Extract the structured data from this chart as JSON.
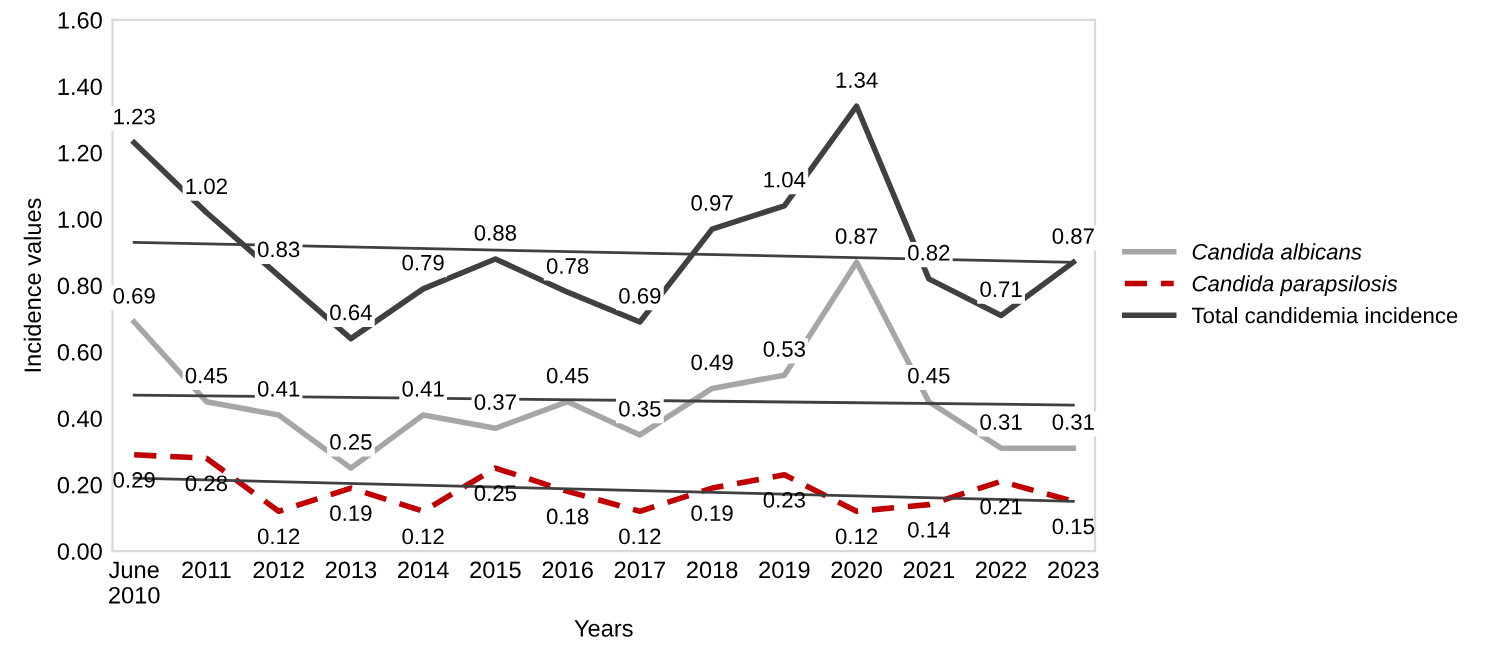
{
  "chart_data": {
    "type": "line",
    "xlabel": "Years",
    "ylabel": "Incidence values",
    "categories": [
      "June\n2010",
      "2011",
      "2012",
      "2013",
      "2014",
      "2015",
      "2016",
      "2017",
      "2018",
      "2019",
      "2020",
      "2021",
      "2022",
      "2023"
    ],
    "ylim": [
      0,
      1.6
    ],
    "yticks": [
      {
        "value": 0,
        "label": "0.00"
      },
      {
        "value": 0.2,
        "label": "0.20"
      },
      {
        "value": 0.4,
        "label": "0.40"
      },
      {
        "value": 0.6,
        "label": "0.60"
      },
      {
        "value": 0.8,
        "label": "0.80"
      },
      {
        "value": 1.0,
        "label": "1.00"
      },
      {
        "value": 1.2,
        "label": "1.20"
      },
      {
        "value": 1.4,
        "label": "1.40"
      },
      {
        "value": 1.6,
        "label": "1.60"
      }
    ],
    "grid": false,
    "legend": "right",
    "marker": "none",
    "series": [
      {
        "name": "Candida albicans",
        "color": "#a6a6a6",
        "line_style": "solid",
        "values": [
          0.69,
          0.45,
          0.41,
          0.25,
          0.41,
          0.37,
          0.45,
          0.35,
          0.49,
          0.53,
          0.87,
          0.45,
          0.31,
          0.31
        ],
        "value_labels": [
          "0.69",
          "0.45",
          "0.41",
          "0.25",
          "0.41",
          "0.37",
          "0.45",
          "0.35",
          "0.49",
          "0.53",
          "0.87",
          "0.45",
          "0.31",
          "0.31"
        ]
      },
      {
        "name": "Candida parapsilosis",
        "color": "#c00000",
        "line_style": "dashed",
        "values": [
          0.29,
          0.28,
          0.12,
          0.19,
          0.12,
          0.25,
          0.18,
          0.12,
          0.19,
          0.23,
          0.12,
          0.14,
          0.21,
          0.15
        ],
        "value_labels": [
          "0.29",
          "0.28",
          "0.12",
          "0.19",
          "0.12",
          "0.25",
          "0.18",
          "0.12",
          "0.19",
          "0.23",
          "0.12",
          "0.14",
          "0.21",
          "0.15"
        ]
      },
      {
        "name": "Total candidemia incidence",
        "color": "#404040",
        "line_style": "solid",
        "values": [
          1.23,
          1.02,
          0.83,
          0.64,
          0.79,
          0.88,
          0.78,
          0.69,
          0.97,
          1.04,
          1.34,
          0.82,
          0.71,
          0.87
        ],
        "value_labels": [
          "1.23",
          "1.02",
          "0.83",
          "0.64",
          "0.79",
          "0.88",
          "0.78",
          "0.69",
          "0.97",
          "1.04",
          "1.34",
          "0.82",
          "0.71",
          "0.87"
        ]
      },
      {
        "type": "line",
        "color": "#404040",
        "line_style": "solid",
        "values": [
          0.93,
          null,
          null,
          null,
          null,
          null,
          null,
          null,
          null,
          null,
          null,
          null,
          null,
          0.87
        ]
      },
      {
        "type": "line",
        "color": "#404040",
        "line_style": "solid",
        "values": [
          0.47,
          null,
          null,
          null,
          null,
          null,
          null,
          null,
          null,
          null,
          null,
          null,
          null,
          0.44
        ]
      },
      {
        "type": "line",
        "color": "#404040",
        "line_style": "solid",
        "values": [
          0.22,
          null,
          null,
          null,
          null,
          null,
          null,
          null,
          null,
          null,
          null,
          null,
          null,
          0.15
        ]
      }
    ]
  }
}
